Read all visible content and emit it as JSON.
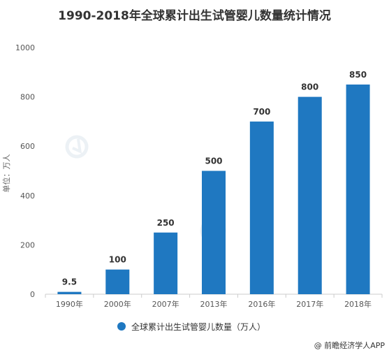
{
  "chart_data": {
    "type": "bar",
    "title": "1990-2018年全球累计出生试管婴儿数量统计情况",
    "ylabel": "单位：万人",
    "xlabel": "",
    "categories": [
      "1990年",
      "2000年",
      "2007年",
      "2013年",
      "2016年",
      "2017年",
      "2018年"
    ],
    "series": [
      {
        "name": "全球累计出生试管婴儿数量（万人）",
        "values": [
          9.5,
          100,
          250,
          500,
          700,
          800,
          850
        ],
        "data_labels": [
          "9.5",
          "100",
          "250",
          "500",
          "700",
          "800",
          "850"
        ]
      }
    ],
    "ylim": [
      0,
      1000
    ],
    "yticks": [
      0,
      200,
      400,
      600,
      800,
      1000
    ],
    "ytick_labels": [
      "0",
      "200",
      "400",
      "600",
      "800",
      "1000"
    ],
    "grid": false,
    "legend_position": "bottom",
    "bar_color": "#1f78c1"
  },
  "source": "@ 前瞻经济学人APP"
}
